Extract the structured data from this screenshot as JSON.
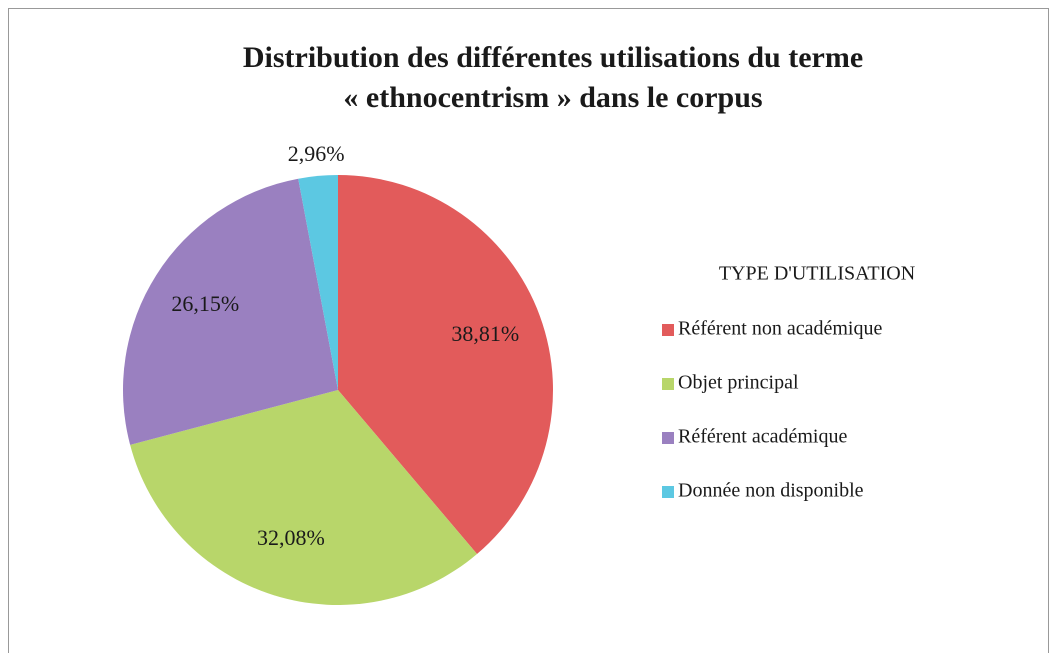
{
  "chart_data": {
    "type": "pie",
    "title": [
      "Distribution des différentes utilisations du terme",
      "« ethnocentrism » dans le corpus"
    ],
    "legend_title": "TYPE D'UTILISATION",
    "legend": "right",
    "categories": [
      "Référent non académique",
      "Objet principal",
      "Référent académique",
      "Donnée non disponible"
    ],
    "values": [
      38.81,
      32.08,
      26.15,
      2.96
    ],
    "value_labels": [
      "38,81%",
      "32,08%",
      "26,15%",
      "2,96%"
    ],
    "colors": [
      "#e25b5b",
      "#b8d66a",
      "#9a80c0",
      "#5cc8e2"
    ]
  }
}
